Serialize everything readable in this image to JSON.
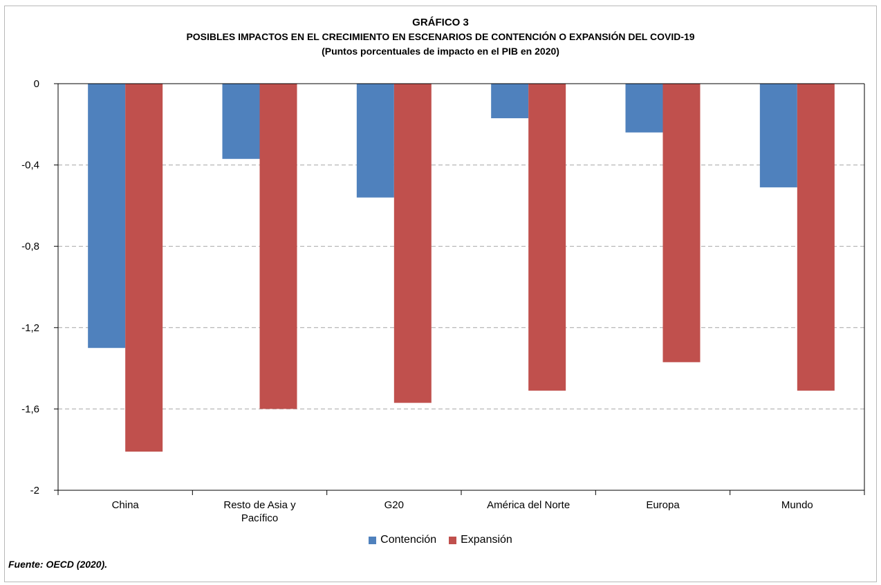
{
  "chart_data": {
    "type": "bar",
    "title": "GRÁFICO 3",
    "subtitle": "POSIBLES IMPACTOS EN EL CRECIMIENTO EN ESCENARIOS DE CONTENCIÓN O EXPANSIÓN DEL COVID-19",
    "note": "(Puntos porcentuales de impacto en el PIB en 2020)",
    "categories": [
      "China",
      "Resto de Asia y Pacífico",
      "G20",
      "América del Norte",
      "Europa",
      "Mundo"
    ],
    "category_lines": [
      [
        "China"
      ],
      [
        "Resto de Asia y",
        "Pacífico"
      ],
      [
        "G20"
      ],
      [
        "América del Norte"
      ],
      [
        "Europa"
      ],
      [
        "Mundo"
      ]
    ],
    "series": [
      {
        "name": "Contención",
        "color": "#4f81bd",
        "values": [
          -1.3,
          -0.37,
          -0.56,
          -0.17,
          -0.24,
          -0.51
        ]
      },
      {
        "name": "Expansión",
        "color": "#c0504d",
        "values": [
          -1.81,
          -1.6,
          -1.57,
          -1.51,
          -1.37,
          -1.51
        ]
      }
    ],
    "ylim": [
      -2,
      0
    ],
    "yticks": [
      0,
      -0.4,
      -0.8,
      -1.2,
      -1.6,
      -2
    ],
    "ytick_labels": [
      "0",
      "-0,4",
      "-0,8",
      "-1,2",
      "-1,6",
      "-2"
    ],
    "grid": "horizontal dashed",
    "legend_position": "bottom",
    "source": "Fuente: OECD (2020)."
  }
}
